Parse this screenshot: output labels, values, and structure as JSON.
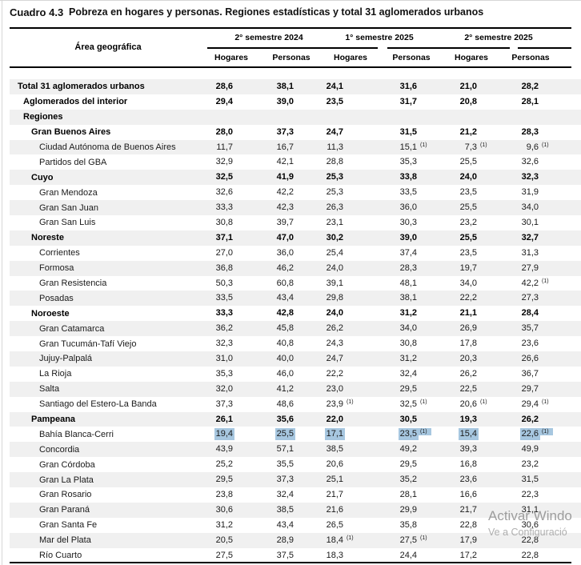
{
  "title": {
    "cuadro": "Cuadro 4.3",
    "text": "Pobreza en hogares y personas. Regiones estadísticas y total 31 aglomerados urbanos"
  },
  "colors": {
    "highlight_blue": "#a7c7e0",
    "stripe_gray": "#f0f0f0",
    "rule_black": "#000000"
  },
  "table": {
    "area_header": "Área geográfica",
    "col_groups": [
      {
        "label": "2° semestre 2024"
      },
      {
        "label": "1° semestre 2025"
      },
      {
        "label": "2° semestre 2025"
      }
    ],
    "sub_headers": [
      "Hogares",
      "Personas"
    ],
    "footnote_marker": "(1)",
    "rows": [
      {
        "label": "Total 31 aglomerados urbanos",
        "indent": 0,
        "bold": true,
        "cells": [
          {
            "v": "28,6"
          },
          {
            "v": "38,1"
          },
          {
            "v": "24,1"
          },
          {
            "v": "31,6"
          },
          {
            "v": "21,0"
          },
          {
            "v": "28,2"
          }
        ]
      },
      {
        "label": "Aglomerados del interior",
        "indent": 1,
        "bold": true,
        "cells": [
          {
            "v": "29,4"
          },
          {
            "v": "39,0"
          },
          {
            "v": "23,5"
          },
          {
            "v": "31,7"
          },
          {
            "v": "20,8"
          },
          {
            "v": "28,1"
          }
        ]
      },
      {
        "label": "Regiones",
        "indent": 1,
        "bold": true,
        "cells": []
      },
      {
        "label": "Gran Buenos Aires",
        "indent": 2,
        "bold": true,
        "cells": [
          {
            "v": "28,0"
          },
          {
            "v": "37,3"
          },
          {
            "v": "24,7"
          },
          {
            "v": "31,5"
          },
          {
            "v": "21,2"
          },
          {
            "v": "28,3"
          }
        ]
      },
      {
        "label": "Ciudad Autónoma de Buenos Aires",
        "indent": 3,
        "bold": false,
        "cells": [
          {
            "v": "11,7"
          },
          {
            "v": "16,7"
          },
          {
            "v": "11,3"
          },
          {
            "v": "15,1",
            "sup": "(1)"
          },
          {
            "v": "7,3",
            "sup": "(1)"
          },
          {
            "v": "9,6",
            "sup": "(1)"
          }
        ]
      },
      {
        "label": "Partidos del GBA",
        "indent": 3,
        "bold": false,
        "cells": [
          {
            "v": "32,9"
          },
          {
            "v": "42,1"
          },
          {
            "v": "28,8"
          },
          {
            "v": "35,3"
          },
          {
            "v": "25,5"
          },
          {
            "v": "32,6"
          }
        ]
      },
      {
        "label": "Cuyo",
        "indent": 2,
        "bold": true,
        "cells": [
          {
            "v": "32,5"
          },
          {
            "v": "41,9"
          },
          {
            "v": "25,3"
          },
          {
            "v": "33,8"
          },
          {
            "v": "24,0"
          },
          {
            "v": "32,3"
          }
        ]
      },
      {
        "label": "Gran Mendoza",
        "indent": 3,
        "bold": false,
        "cells": [
          {
            "v": "32,6"
          },
          {
            "v": "42,2"
          },
          {
            "v": "25,3"
          },
          {
            "v": "33,5"
          },
          {
            "v": "23,5"
          },
          {
            "v": "31,9"
          }
        ]
      },
      {
        "label": "Gran San Juan",
        "indent": 3,
        "bold": false,
        "cells": [
          {
            "v": "33,3"
          },
          {
            "v": "42,3"
          },
          {
            "v": "26,3"
          },
          {
            "v": "36,0"
          },
          {
            "v": "25,5"
          },
          {
            "v": "34,0"
          }
        ]
      },
      {
        "label": "Gran San Luis",
        "indent": 3,
        "bold": false,
        "cells": [
          {
            "v": "30,8"
          },
          {
            "v": "39,7"
          },
          {
            "v": "23,1"
          },
          {
            "v": "30,3"
          },
          {
            "v": "23,2"
          },
          {
            "v": "30,1"
          }
        ]
      },
      {
        "label": "Noreste",
        "indent": 2,
        "bold": true,
        "cells": [
          {
            "v": "37,1"
          },
          {
            "v": "47,0"
          },
          {
            "v": "30,2"
          },
          {
            "v": "39,0"
          },
          {
            "v": "25,5"
          },
          {
            "v": "32,7"
          }
        ]
      },
      {
        "label": "Corrientes",
        "indent": 3,
        "bold": false,
        "cells": [
          {
            "v": "27,0"
          },
          {
            "v": "36,0"
          },
          {
            "v": "25,4"
          },
          {
            "v": "37,4"
          },
          {
            "v": "23,5"
          },
          {
            "v": "31,3"
          }
        ]
      },
      {
        "label": "Formosa",
        "indent": 3,
        "bold": false,
        "cells": [
          {
            "v": "36,8"
          },
          {
            "v": "46,2"
          },
          {
            "v": "24,0"
          },
          {
            "v": "28,3"
          },
          {
            "v": "19,7"
          },
          {
            "v": "27,9"
          }
        ]
      },
      {
        "label": "Gran Resistencia",
        "indent": 3,
        "bold": false,
        "cells": [
          {
            "v": "50,3"
          },
          {
            "v": "60,8"
          },
          {
            "v": "39,1"
          },
          {
            "v": "48,1"
          },
          {
            "v": "34,0"
          },
          {
            "v": "42,2",
            "sup": "(1)"
          }
        ]
      },
      {
        "label": "Posadas",
        "indent": 3,
        "bold": false,
        "cells": [
          {
            "v": "33,5"
          },
          {
            "v": "43,4"
          },
          {
            "v": "29,8"
          },
          {
            "v": "38,1"
          },
          {
            "v": "22,2"
          },
          {
            "v": "27,3"
          }
        ]
      },
      {
        "label": "Noroeste",
        "indent": 2,
        "bold": true,
        "cells": [
          {
            "v": "33,3"
          },
          {
            "v": "42,8"
          },
          {
            "v": "24,0"
          },
          {
            "v": "31,2"
          },
          {
            "v": "21,1"
          },
          {
            "v": "28,4"
          }
        ]
      },
      {
        "label": "Gran Catamarca",
        "indent": 3,
        "bold": false,
        "cells": [
          {
            "v": "36,2"
          },
          {
            "v": "45,8"
          },
          {
            "v": "26,2"
          },
          {
            "v": "34,0"
          },
          {
            "v": "26,9"
          },
          {
            "v": "35,7"
          }
        ]
      },
      {
        "label": "Gran Tucumán-Tafí Viejo",
        "indent": 3,
        "bold": false,
        "cells": [
          {
            "v": "32,3"
          },
          {
            "v": "40,8"
          },
          {
            "v": "24,3"
          },
          {
            "v": "30,8"
          },
          {
            "v": "17,8"
          },
          {
            "v": "23,6"
          }
        ]
      },
      {
        "label": "Jujuy-Palpalá",
        "indent": 3,
        "bold": false,
        "cells": [
          {
            "v": "31,0"
          },
          {
            "v": "40,0"
          },
          {
            "v": "24,7"
          },
          {
            "v": "31,2"
          },
          {
            "v": "20,3"
          },
          {
            "v": "26,6"
          }
        ]
      },
      {
        "label": "La Rioja",
        "indent": 3,
        "bold": false,
        "cells": [
          {
            "v": "35,3"
          },
          {
            "v": "46,0"
          },
          {
            "v": "22,2"
          },
          {
            "v": "32,4"
          },
          {
            "v": "26,2"
          },
          {
            "v": "36,7"
          }
        ]
      },
      {
        "label": "Salta",
        "indent": 3,
        "bold": false,
        "cells": [
          {
            "v": "32,0"
          },
          {
            "v": "41,2"
          },
          {
            "v": "23,0"
          },
          {
            "v": "29,5"
          },
          {
            "v": "22,5"
          },
          {
            "v": "29,7"
          }
        ]
      },
      {
        "label": "Santiago del Estero-La Banda",
        "indent": 3,
        "bold": false,
        "cells": [
          {
            "v": "37,3"
          },
          {
            "v": "48,6"
          },
          {
            "v": "23,9",
            "sup": "(1)"
          },
          {
            "v": "32,5",
            "sup": "(1)"
          },
          {
            "v": "20,6",
            "sup": "(1)"
          },
          {
            "v": "29,4",
            "sup": "(1)"
          }
        ]
      },
      {
        "label": "Pampeana",
        "indent": 2,
        "bold": true,
        "cells": [
          {
            "v": "26,1"
          },
          {
            "v": "35,6"
          },
          {
            "v": "22,0"
          },
          {
            "v": "30,5"
          },
          {
            "v": "19,3"
          },
          {
            "v": "26,2"
          }
        ]
      },
      {
        "label": "Bahía Blanca-Cerri",
        "indent": 3,
        "bold": false,
        "cells": [
          {
            "v": "19,4",
            "hl": true
          },
          {
            "v": "25,5",
            "hl": true
          },
          {
            "v": "17,1",
            "hl": true
          },
          {
            "v": "23,5",
            "sup": "(1)",
            "hl": true
          },
          {
            "v": "15,4",
            "hl": true
          },
          {
            "v": "22,6",
            "sup": "(1)",
            "hl": true
          }
        ]
      },
      {
        "label": "Concordia",
        "indent": 3,
        "bold": false,
        "cells": [
          {
            "v": "43,9"
          },
          {
            "v": "57,1"
          },
          {
            "v": "38,5"
          },
          {
            "v": "49,2"
          },
          {
            "v": "39,3"
          },
          {
            "v": "49,9"
          }
        ]
      },
      {
        "label": "Gran Córdoba",
        "indent": 3,
        "bold": false,
        "cells": [
          {
            "v": "25,2"
          },
          {
            "v": "35,5"
          },
          {
            "v": "20,6"
          },
          {
            "v": "29,5"
          },
          {
            "v": "16,8"
          },
          {
            "v": "23,2"
          }
        ]
      },
      {
        "label": "Gran La Plata",
        "indent": 3,
        "bold": false,
        "cells": [
          {
            "v": "29,5"
          },
          {
            "v": "37,3"
          },
          {
            "v": "25,1"
          },
          {
            "v": "35,2"
          },
          {
            "v": "23,6"
          },
          {
            "v": "31,5"
          }
        ]
      },
      {
        "label": "Gran Rosario",
        "indent": 3,
        "bold": false,
        "cells": [
          {
            "v": "23,8"
          },
          {
            "v": "32,4"
          },
          {
            "v": "21,7"
          },
          {
            "v": "28,1"
          },
          {
            "v": "16,6"
          },
          {
            "v": "22,3"
          }
        ]
      },
      {
        "label": "Gran Paraná",
        "indent": 3,
        "bold": false,
        "cells": [
          {
            "v": "30,6"
          },
          {
            "v": "38,5"
          },
          {
            "v": "21,6"
          },
          {
            "v": "29,9"
          },
          {
            "v": "21,7"
          },
          {
            "v": "31,1"
          }
        ]
      },
      {
        "label": "Gran Santa Fe",
        "indent": 3,
        "bold": false,
        "cells": [
          {
            "v": "31,2"
          },
          {
            "v": "43,4"
          },
          {
            "v": "26,5"
          },
          {
            "v": "35,8"
          },
          {
            "v": "22,8"
          },
          {
            "v": "30,6"
          }
        ]
      },
      {
        "label": "Mar del Plata",
        "indent": 3,
        "bold": false,
        "cells": [
          {
            "v": "20,5"
          },
          {
            "v": "28,9"
          },
          {
            "v": "18,4",
            "sup": "(1)"
          },
          {
            "v": "27,5",
            "sup": "(1)"
          },
          {
            "v": "17,9"
          },
          {
            "v": "22,8"
          }
        ]
      },
      {
        "label": "Río Cuarto",
        "indent": 3,
        "bold": false,
        "cells": [
          {
            "v": "27,5"
          },
          {
            "v": "37,5"
          },
          {
            "v": "18,3"
          },
          {
            "v": "24,4"
          },
          {
            "v": "17,2"
          },
          {
            "v": "22,8"
          }
        ]
      }
    ]
  },
  "watermark": {
    "line1": "Activar Windo",
    "line2": "Ve a Configuració"
  }
}
